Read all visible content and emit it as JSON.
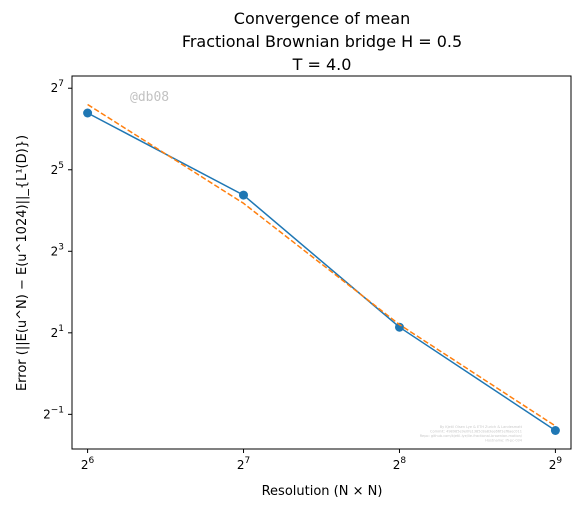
{
  "chart_data": {
    "type": "line",
    "title_lines": [
      "Convergence of mean",
      "Fractional Brownian bridge H = 0.5",
      "T = 4.0"
    ],
    "xlabel": "Resolution (N × N)",
    "ylabel": "Error (||E(u^N) − E(u^1024)||_{L¹(D)})",
    "xscale": "log2",
    "yscale": "log2",
    "xlim": [
      5.9,
      9.1
    ],
    "ylim": [
      -1.85,
      7.3
    ],
    "x_ticks": [
      {
        "base": "2",
        "exp": "6",
        "value": 64
      },
      {
        "base": "2",
        "exp": "7",
        "value": 128
      },
      {
        "base": "2",
        "exp": "8",
        "value": 256
      },
      {
        "base": "2",
        "exp": "9",
        "value": 512
      }
    ],
    "y_ticks": [
      {
        "base": "2",
        "exp": "−1",
        "value": 0.5
      },
      {
        "base": "2",
        "exp": "1",
        "value": 2
      },
      {
        "base": "2",
        "exp": "3",
        "value": 8
      },
      {
        "base": "2",
        "exp": "5",
        "value": 32
      },
      {
        "base": "2",
        "exp": "7",
        "value": 128
      }
    ],
    "grid": false,
    "legend": "none",
    "series": [
      {
        "style": "solid-with-markers",
        "color": "#1f77b4",
        "x": [
          64,
          128,
          256,
          512
        ],
        "y": [
          84,
          20.8,
          2.2,
          0.38
        ]
      },
      {
        "style": "dashed",
        "color": "#ff7f0e",
        "x": [
          64,
          128,
          256,
          512
        ],
        "y": [
          97,
          18.1,
          2.3,
          0.41
        ]
      }
    ],
    "watermark": "@db08",
    "credits": [
      "By Kjetil Olsen Lye & ETH Zurich & Landesmatt",
      "Commit: 498985e9e0fe1385c8a83ee66f1ef6aec011",
      "Repo: github.com/kjetil-lye/lie-fractional-brownian-motion/",
      "Hostname: ifi-pc-034"
    ]
  }
}
